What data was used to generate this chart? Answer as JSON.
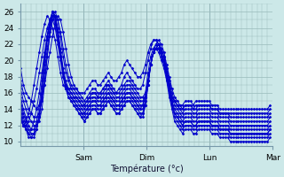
{
  "xlabel": "Température (°c)",
  "bg_color": "#cce8e8",
  "line_color": "#0000cc",
  "grid_color": "#99bbbb",
  "yticks": [
    10,
    12,
    14,
    16,
    18,
    20,
    22,
    24,
    26
  ],
  "ymin": 9.5,
  "ymax": 27,
  "xmin": 0,
  "xmax": 95,
  "day_ticks": [
    24,
    48,
    72,
    96
  ],
  "day_labels": [
    "Sam",
    "Dim",
    "Lun",
    "Mar"
  ],
  "series": [
    [
      19.0,
      17.0,
      16.0,
      15.5,
      15.0,
      14.5,
      14.0,
      14.5,
      15.5,
      17.0,
      19.0,
      21.0,
      23.0,
      24.5,
      25.5,
      25.0,
      23.5,
      21.5,
      19.5,
      18.0,
      17.0,
      16.5,
      16.0,
      15.5,
      15.0,
      15.5,
      16.0,
      16.5,
      16.5,
      16.0,
      16.0,
      16.5,
      17.0,
      17.5,
      17.0,
      16.5,
      16.0,
      16.0,
      16.5,
      17.0,
      17.5,
      17.5,
      17.0,
      16.5,
      16.0,
      15.5,
      15.5,
      16.0,
      17.5,
      19.5,
      21.0,
      22.0,
      22.5,
      22.0,
      21.0,
      19.5,
      18.0,
      16.5,
      15.5,
      15.0,
      14.5,
      14.0,
      14.5,
      14.5,
      14.5,
      14.0,
      14.0,
      14.5,
      14.5,
      14.5,
      14.5,
      14.5,
      14.0,
      14.0,
      14.0,
      13.5,
      13.5,
      13.5,
      13.5,
      13.0,
      13.0,
      13.0,
      13.0,
      13.0,
      13.0,
      13.0,
      13.0,
      13.0,
      13.0,
      13.0,
      13.0,
      13.0,
      13.0,
      13.0,
      13.5
    ],
    [
      17.5,
      16.0,
      15.0,
      14.0,
      13.5,
      13.0,
      13.0,
      13.5,
      15.0,
      17.5,
      20.5,
      23.0,
      25.0,
      25.5,
      25.0,
      23.5,
      21.5,
      19.5,
      18.0,
      17.0,
      16.5,
      16.0,
      15.5,
      15.0,
      14.5,
      15.0,
      15.5,
      16.0,
      16.0,
      15.5,
      15.5,
      16.0,
      16.5,
      17.0,
      16.5,
      16.0,
      15.5,
      15.5,
      16.0,
      16.5,
      17.0,
      17.0,
      16.5,
      16.0,
      15.5,
      15.0,
      15.0,
      15.5,
      17.5,
      19.5,
      21.0,
      21.5,
      22.0,
      21.5,
      20.5,
      19.0,
      17.5,
      16.0,
      15.0,
      14.5,
      14.0,
      13.5,
      14.0,
      14.0,
      14.0,
      13.5,
      13.5,
      14.0,
      14.0,
      14.0,
      14.0,
      14.0,
      13.5,
      13.5,
      13.5,
      13.0,
      13.0,
      13.0,
      13.0,
      12.5,
      12.5,
      12.5,
      12.5,
      12.5,
      12.5,
      12.5,
      12.5,
      12.5,
      12.5,
      12.5,
      12.5,
      12.5,
      12.5,
      12.5,
      13.0
    ],
    [
      16.5,
      15.0,
      14.0,
      13.0,
      12.5,
      12.0,
      12.0,
      12.5,
      14.0,
      17.0,
      20.5,
      23.5,
      25.5,
      26.0,
      25.0,
      23.0,
      20.5,
      18.5,
      17.5,
      16.5,
      16.0,
      15.5,
      15.0,
      14.5,
      14.0,
      14.5,
      15.0,
      15.5,
      15.5,
      15.0,
      15.0,
      15.5,
      16.0,
      16.5,
      16.0,
      15.5,
      15.0,
      15.0,
      15.5,
      16.0,
      16.5,
      16.5,
      16.0,
      15.5,
      15.0,
      14.5,
      14.5,
      15.5,
      17.5,
      19.5,
      21.0,
      21.5,
      22.0,
      21.5,
      20.5,
      19.0,
      17.0,
      15.5,
      14.5,
      14.0,
      13.5,
      13.0,
      13.5,
      13.5,
      13.5,
      13.0,
      13.0,
      13.5,
      13.5,
      13.5,
      13.5,
      13.5,
      13.0,
      13.0,
      13.0,
      12.5,
      12.5,
      12.5,
      12.5,
      12.0,
      12.0,
      12.0,
      12.0,
      12.0,
      12.0,
      12.0,
      12.0,
      12.0,
      12.0,
      12.0,
      12.0,
      12.0,
      12.0,
      12.0,
      12.5
    ],
    [
      15.5,
      14.0,
      13.0,
      12.0,
      11.5,
      11.5,
      12.0,
      13.0,
      15.5,
      18.5,
      21.5,
      24.0,
      25.5,
      25.5,
      24.0,
      21.5,
      19.0,
      17.5,
      16.5,
      16.0,
      15.5,
      15.0,
      14.5,
      14.0,
      13.5,
      14.0,
      14.5,
      15.0,
      15.0,
      14.5,
      14.5,
      15.0,
      15.5,
      16.0,
      15.5,
      15.0,
      14.5,
      14.5,
      15.0,
      15.5,
      16.0,
      16.0,
      15.5,
      15.0,
      14.5,
      14.0,
      14.0,
      15.0,
      17.0,
      19.5,
      21.0,
      21.5,
      22.0,
      21.0,
      20.0,
      18.5,
      17.0,
      15.0,
      14.0,
      13.5,
      13.0,
      12.5,
      13.0,
      13.0,
      13.0,
      12.5,
      12.5,
      13.0,
      13.0,
      13.0,
      13.0,
      13.0,
      12.5,
      12.5,
      12.5,
      12.0,
      12.0,
      12.0,
      12.0,
      11.5,
      11.5,
      11.5,
      11.5,
      11.5,
      11.5,
      11.5,
      11.5,
      11.5,
      11.5,
      11.5,
      11.5,
      11.5,
      11.5,
      11.5,
      12.0
    ],
    [
      15.0,
      13.5,
      12.5,
      11.5,
      11.0,
      11.0,
      11.5,
      13.0,
      16.0,
      19.5,
      22.5,
      24.5,
      26.0,
      25.5,
      23.5,
      21.0,
      18.5,
      17.0,
      16.0,
      15.5,
      15.0,
      14.5,
      14.0,
      13.5,
      13.0,
      13.5,
      14.0,
      14.5,
      14.5,
      14.0,
      14.0,
      14.5,
      15.0,
      15.5,
      15.0,
      14.5,
      14.0,
      14.0,
      14.5,
      15.0,
      15.5,
      15.5,
      15.0,
      14.5,
      14.0,
      13.5,
      13.5,
      14.5,
      17.0,
      19.5,
      21.0,
      21.5,
      21.5,
      21.0,
      20.0,
      18.5,
      16.5,
      15.0,
      13.5,
      13.0,
      12.5,
      12.0,
      12.5,
      12.5,
      12.5,
      12.0,
      12.0,
      12.5,
      12.5,
      12.5,
      12.5,
      12.5,
      12.0,
      12.0,
      12.0,
      11.5,
      11.5,
      11.5,
      11.5,
      11.0,
      11.0,
      11.0,
      11.0,
      11.0,
      11.0,
      11.0,
      11.0,
      11.0,
      11.0,
      11.0,
      11.0,
      11.0,
      11.0,
      11.0,
      11.5
    ],
    [
      14.5,
      13.0,
      12.0,
      11.0,
      10.5,
      10.5,
      11.5,
      13.5,
      16.5,
      20.0,
      23.0,
      25.0,
      26.0,
      25.5,
      23.5,
      21.0,
      18.5,
      16.5,
      15.5,
      15.0,
      14.5,
      14.0,
      13.5,
      13.0,
      12.5,
      13.0,
      13.5,
      14.0,
      14.0,
      13.5,
      13.5,
      14.0,
      14.5,
      15.0,
      14.5,
      14.0,
      13.5,
      13.5,
      14.0,
      14.5,
      15.0,
      15.0,
      14.5,
      14.0,
      13.5,
      13.0,
      13.0,
      14.5,
      17.0,
      19.5,
      21.0,
      21.5,
      21.5,
      20.5,
      19.5,
      18.0,
      16.0,
      14.5,
      13.0,
      12.5,
      12.0,
      11.5,
      12.0,
      12.0,
      12.0,
      11.5,
      11.5,
      12.0,
      12.0,
      12.0,
      12.0,
      12.0,
      11.5,
      11.5,
      11.5,
      11.0,
      11.0,
      11.0,
      11.0,
      10.5,
      10.5,
      10.5,
      10.5,
      10.5,
      10.5,
      10.5,
      10.5,
      10.5,
      10.5,
      10.5,
      10.5,
      10.5,
      10.5,
      10.5,
      11.0
    ],
    [
      14.0,
      12.5,
      11.5,
      10.5,
      10.5,
      11.0,
      12.5,
      14.5,
      17.5,
      20.5,
      23.0,
      25.0,
      26.0,
      25.0,
      23.0,
      20.5,
      18.0,
      16.5,
      15.5,
      15.0,
      14.5,
      14.0,
      13.5,
      13.0,
      12.5,
      13.0,
      13.5,
      14.0,
      14.0,
      13.5,
      13.5,
      14.0,
      14.5,
      15.0,
      14.5,
      14.0,
      13.5,
      13.5,
      14.0,
      14.5,
      15.0,
      15.0,
      14.5,
      14.0,
      13.5,
      13.0,
      13.5,
      15.0,
      17.5,
      19.5,
      21.0,
      21.5,
      21.0,
      20.0,
      19.0,
      17.5,
      15.5,
      14.0,
      12.5,
      12.0,
      11.5,
      11.0,
      11.5,
      11.5,
      11.5,
      11.0,
      11.0,
      11.5,
      11.5,
      11.5,
      11.5,
      11.5,
      11.0,
      11.0,
      11.0,
      10.5,
      10.5,
      10.5,
      10.5,
      10.0,
      10.0,
      10.0,
      10.0,
      10.0,
      10.0,
      10.0,
      10.0,
      10.0,
      10.0,
      10.0,
      10.0,
      10.0,
      10.0,
      10.0,
      10.5
    ],
    [
      13.5,
      12.0,
      11.5,
      11.0,
      11.5,
      12.5,
      14.0,
      16.0,
      18.5,
      21.0,
      23.0,
      24.5,
      25.5,
      24.5,
      22.5,
      20.5,
      18.5,
      17.0,
      16.0,
      15.5,
      15.0,
      14.5,
      14.0,
      13.5,
      13.5,
      14.0,
      14.5,
      15.0,
      15.0,
      14.5,
      14.5,
      15.0,
      15.5,
      16.0,
      15.5,
      15.0,
      14.5,
      14.5,
      15.0,
      15.5,
      16.0,
      16.0,
      15.5,
      15.0,
      14.5,
      14.0,
      14.5,
      16.0,
      18.5,
      20.5,
      21.5,
      22.0,
      21.5,
      20.5,
      19.5,
      18.0,
      16.0,
      14.5,
      13.5,
      13.0,
      12.5,
      12.0,
      12.5,
      12.5,
      12.5,
      12.0,
      12.0,
      12.5,
      12.5,
      12.5,
      12.5,
      12.5,
      12.0,
      12.0,
      12.0,
      11.5,
      11.5,
      11.5,
      11.5,
      11.0,
      11.0,
      11.0,
      11.0,
      11.0,
      11.0,
      11.0,
      11.0,
      11.0,
      11.0,
      11.0,
      11.0,
      11.0,
      11.0,
      11.0,
      11.5
    ],
    [
      13.0,
      12.0,
      12.0,
      12.5,
      13.5,
      15.0,
      16.5,
      18.5,
      20.5,
      22.5,
      24.0,
      25.0,
      25.0,
      24.0,
      22.0,
      20.0,
      18.0,
      17.0,
      16.5,
      16.0,
      15.5,
      15.5,
      15.0,
      14.5,
      14.5,
      15.0,
      15.5,
      16.0,
      16.0,
      15.5,
      16.0,
      16.5,
      17.0,
      17.0,
      16.5,
      16.0,
      16.0,
      16.5,
      17.0,
      18.0,
      18.5,
      18.0,
      17.5,
      17.0,
      16.5,
      16.5,
      17.0,
      18.5,
      20.0,
      21.5,
      22.5,
      22.5,
      22.0,
      21.0,
      19.5,
      18.0,
      16.5,
      15.5,
      15.0,
      14.5,
      14.0,
      14.0,
      14.5,
      14.5,
      14.5,
      14.0,
      14.5,
      14.5,
      14.5,
      14.5,
      14.5,
      14.5,
      14.0,
      14.0,
      14.0,
      13.5,
      13.5,
      13.5,
      13.5,
      13.5,
      13.5,
      13.5,
      13.5,
      13.5,
      13.5,
      13.5,
      13.5,
      13.5,
      13.5,
      13.5,
      13.5,
      13.5,
      13.5,
      13.5,
      14.0
    ],
    [
      12.5,
      12.0,
      12.5,
      13.5,
      15.0,
      17.0,
      19.0,
      21.0,
      23.0,
      24.5,
      25.5,
      25.0,
      24.0,
      22.5,
      20.5,
      18.5,
      17.0,
      16.5,
      16.5,
      16.5,
      16.5,
      16.5,
      16.0,
      16.0,
      16.0,
      16.5,
      17.0,
      17.5,
      17.5,
      17.0,
      17.0,
      17.5,
      18.0,
      18.5,
      18.0,
      17.5,
      17.5,
      18.0,
      18.5,
      19.5,
      20.0,
      19.5,
      19.0,
      18.5,
      18.0,
      18.0,
      18.5,
      19.5,
      21.0,
      22.0,
      22.5,
      22.5,
      22.0,
      21.0,
      19.5,
      18.0,
      16.5,
      15.5,
      15.0,
      14.5,
      14.5,
      14.5,
      15.0,
      15.0,
      15.0,
      14.5,
      15.0,
      15.0,
      15.0,
      15.0,
      15.0,
      15.0,
      14.5,
      14.5,
      14.5,
      14.0,
      14.0,
      14.0,
      14.0,
      14.0,
      14.0,
      14.0,
      14.0,
      14.0,
      14.0,
      14.0,
      14.0,
      14.0,
      14.0,
      14.0,
      14.0,
      14.0,
      14.0,
      14.0,
      14.5
    ]
  ]
}
